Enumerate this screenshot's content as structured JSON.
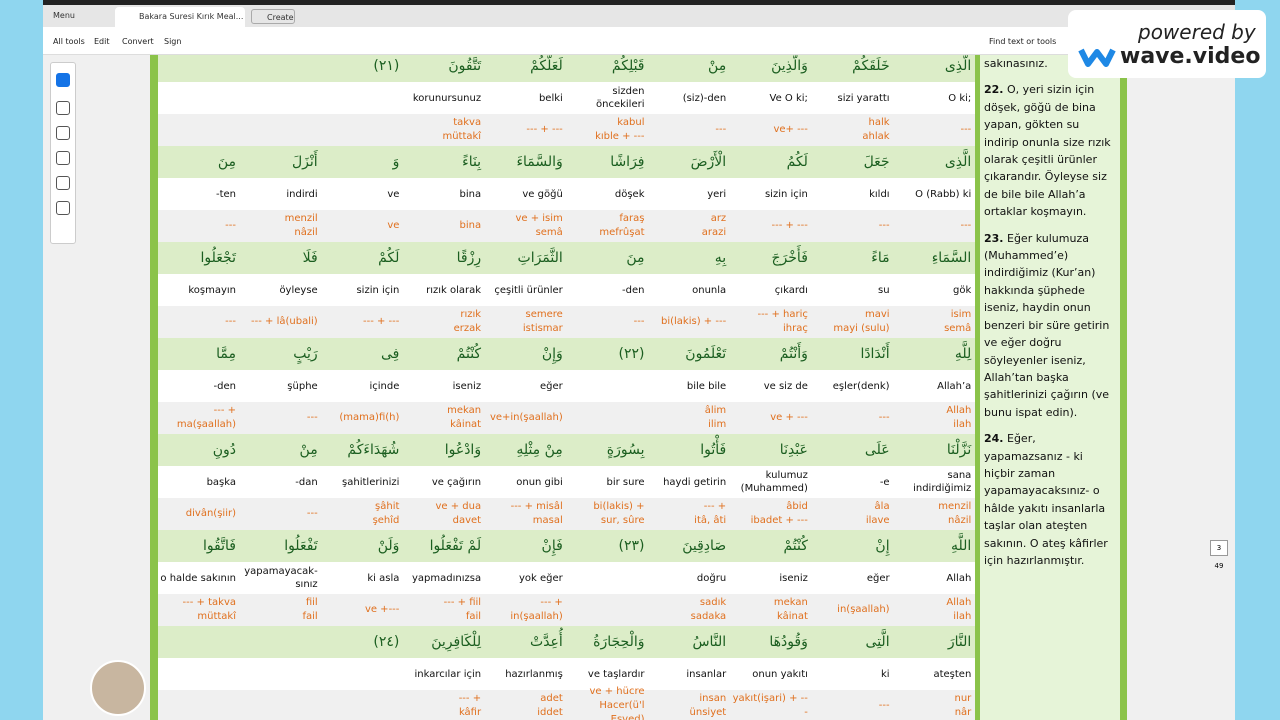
{
  "toolbar": {
    "menu": "Menu",
    "tab": "Bakara Suresi Kırık Meal...",
    "create": "Create",
    "tools": [
      "All tools",
      "Edit",
      "Convert",
      "Sign"
    ],
    "search": "Find text or tools"
  },
  "watermark": {
    "line1": "powered by",
    "line2": "wave.video"
  },
  "page_nav": {
    "current": "3",
    "total": "49"
  },
  "table": {
    "groups": [
      {
        "arabic": [
          null,
          null,
          "(٢١)",
          "تَتَّقُونَ",
          "لَعَلَّكُمْ",
          "قَبْلِكُمْ",
          "مِنْ",
          "وَالَّذِينَ",
          "خَلَقَكُمْ",
          "الَّذِى"
        ],
        "turkish": [
          null,
          null,
          null,
          "korunursunuz",
          "belki",
          "sizden\nöncekileri",
          "(siz)-den",
          "Ve O ki;",
          "sizi yarattı",
          "O ki;"
        ],
        "roots": [
          null,
          null,
          null,
          "takva\nmüttakî",
          "--- + ---",
          "kabul\nkıble + ---",
          "---",
          "ve+ ---",
          "halk\nahlak",
          "---"
        ]
      },
      {
        "arabic": [
          "مِنَ",
          "أَنْزَلَ",
          "وَ",
          "بِنَاءً",
          "وَالسَّمَاءَ",
          "فِرَاشًا",
          "الْأَرْضَ",
          "لَكُمُ",
          "جَعَلَ",
          "الَّذِى"
        ],
        "turkish": [
          "-ten",
          "indirdi",
          "ve",
          "bina",
          "ve göğü",
          "döşek",
          "yeri",
          "sizin için",
          "kıldı",
          "O (Rabb) ki"
        ],
        "roots": [
          "---",
          "menzil\nnâzil",
          "ve",
          "bina",
          "ve + isim\nsemâ",
          "faraş\nmefrûşat",
          "arz\narazi",
          "--- + ---",
          "---",
          "---"
        ]
      },
      {
        "arabic": [
          "تَجْعَلُوا",
          "فَلَا",
          "لَكُمْ",
          "رِزْقًا",
          "الثَّمَرَاتِ",
          "مِنَ",
          "بِهِ",
          "فَأَخْرَجَ",
          "مَاءً",
          "السَّمَاءِ"
        ],
        "turkish": [
          "koşmayın",
          "öyleyse",
          "sizin için",
          "rızık olarak",
          "çeşitli ürünler",
          "-den",
          "onunla",
          "çıkardı",
          "su",
          "gök"
        ],
        "roots": [
          "---",
          "--- + lâ(ubali)",
          "--- + ---",
          "rızık\nerzak",
          "semere\nistismar",
          "---",
          "bi(lakis) + ---",
          "--- + hariç\nihraç",
          "mavi\nmayi (sulu)",
          "isim\nsemâ"
        ]
      },
      {
        "arabic": [
          "مِمَّا",
          "رَيْبٍ",
          "فِى",
          "كُنْتُمْ",
          "وَإِنْ",
          "(٢٢)",
          "تَعْلَمُونَ",
          "وَأَنْتُمْ",
          "أَنْدَادًا",
          "لِلَّهِ"
        ],
        "turkish": [
          "-den",
          "şüphe",
          "içinde",
          "iseniz",
          "eğer",
          null,
          "bile bile",
          "ve siz de",
          "eşler(denk)",
          "Allah’a"
        ],
        "roots": [
          "--- +\nma(şaallah)",
          "---",
          "(mama)fi(h)",
          "mekan\nkâinat",
          "ve+in(şaallah)",
          null,
          "âlim\nilim",
          "ve + ---",
          "---",
          "Allah\nilah"
        ]
      },
      {
        "arabic": [
          "دُونِ",
          "مِنْ",
          "شُهَدَاءَكُمْ",
          "وَادْعُوا",
          "مِنْ مِثْلِهِ",
          "بِسُورَةٍ",
          "فَأْتُوا",
          "عَبْدِنَا",
          "عَلَى",
          "نَزَّلْنَا"
        ],
        "turkish": [
          "başka",
          "-dan",
          "şahitlerinizi",
          "ve çağırın",
          "onun gibi",
          "bir sure",
          "haydi getirin",
          "kulumuz\n(Muhammed)",
          "-e",
          "sana\nindirdiğimiz"
        ],
        "roots": [
          "divân(şiir)",
          "---",
          "şâhit\nşehîd",
          "ve + dua\ndavet",
          "--- + misâl\nmasal",
          "bi(lakis) +\nsur, sûre",
          "--- +\nitâ, âti",
          "âbid\nibadet + ---",
          "âla\nilave",
          "menzil\nnâzil"
        ]
      },
      {
        "arabic": [
          "فَاتَّقُوا",
          "تَفْعَلُوا",
          "وَلَنْ",
          "لَمْ تَفْعَلُوا",
          "فَإِنْ",
          "(٢٣)",
          "صَادِقِينَ",
          "كُنْتُمْ",
          "إِنْ",
          "اللَّهِ"
        ],
        "turkish": [
          "o halde sakının",
          "yapamayacak-\nsınız",
          "ki asla",
          "yapmadınızsa",
          "yok eğer",
          null,
          "doğru",
          "iseniz",
          "eğer",
          "Allah"
        ],
        "roots": [
          "--- + takva\nmüttakî",
          "fiil\nfail",
          "ve +---",
          "--- + fiil\nfail",
          "--- +\nin(şaallah)",
          null,
          "sadık\nsadaka",
          "mekan\nkâinat",
          "in(şaallah)",
          "Allah\nilah"
        ]
      },
      {
        "arabic": [
          null,
          null,
          "(٢٤)",
          "لِلْكَافِرِينَ",
          "أُعِدَّتْ",
          "وَالْحِجَارَةُ",
          "النَّاسُ",
          "وَقُودُهَا",
          "الَّتِى",
          "النَّارَ"
        ],
        "turkish": [
          null,
          null,
          null,
          "inkarcılar için",
          "hazırlanmış",
          "ve taşlardır",
          "insanlar",
          "onun yakıtı",
          "ki",
          "ateşten"
        ],
        "roots": [
          null,
          null,
          null,
          "--- +\nkâfir",
          "adet\niddet",
          "ve + hücre\nHacer(ü'l Esved)",
          "insan\nünsiyet",
          "yakıt(işari) + ---",
          "---",
          "nur\nnâr"
        ]
      }
    ]
  },
  "meal": [
    {
      "text": "sakınasınız."
    },
    {
      "number": "22.",
      "text": "O, yeri sizin için döşek, göğü de bina yapan, gökten su indirip onunla size rızık olarak çeşitli ürünler çıkarandır. Öyleyse siz de bile bile Allah’a ortaklar koşmayın."
    },
    {
      "number": "23.",
      "text": "Eğer kulumuza (Muhammed’e) indirdiğimiz (Kur’an) hakkında şüphede iseniz, haydin onun benzeri bir süre getirin ve eğer doğru söyleyenler iseniz, Allah’tan başka şahitlerinizi çağırın (ve bunu ispat edin)."
    },
    {
      "number": "24.",
      "text": "Eğer, yapamazsanız - ki hiçbir zaman yapamayacaksınız- o hâlde yakıtı insanlarla taşlar olan ateşten sakının. O ateş kâfirler için hazırlanmıştır."
    }
  ]
}
